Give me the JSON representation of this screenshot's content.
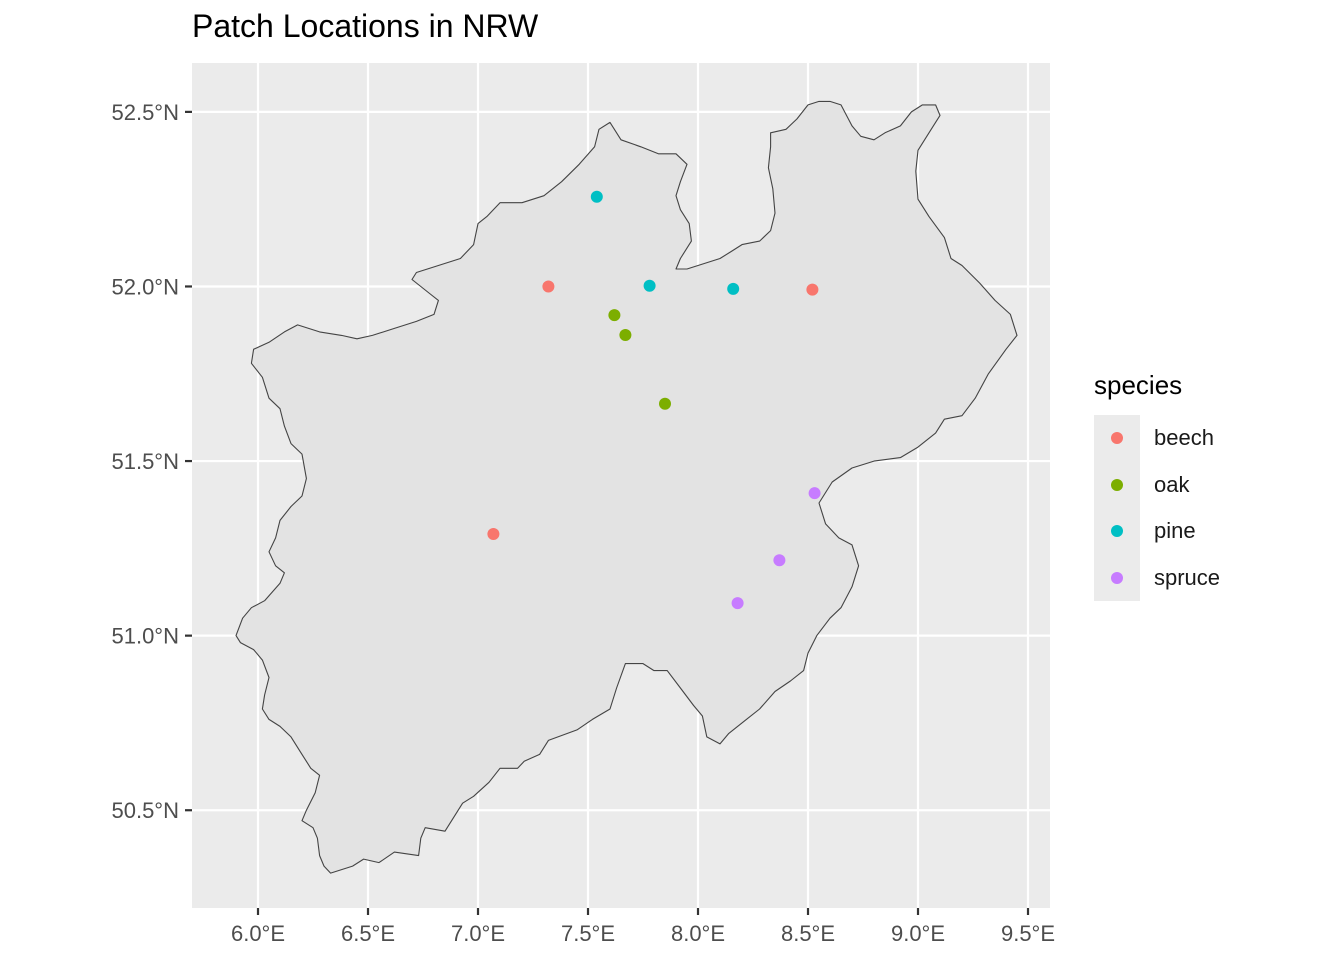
{
  "title": "Patch Locations in NRW",
  "legend": {
    "title": "species",
    "items": [
      {
        "label": "beech",
        "color": "#F8766D"
      },
      {
        "label": "oak",
        "color": "#7CAE00"
      },
      {
        "label": "pine",
        "color": "#00BFC4"
      },
      {
        "label": "spruce",
        "color": "#C77CFF"
      }
    ]
  },
  "map": {
    "region": "NRW",
    "panel_background": "#ebebeb",
    "region_fill": "#e3e3e3",
    "region_stroke": "#444444",
    "grid_color": "#ffffff",
    "lon_range": [
      5.7,
      9.6
    ],
    "lat_range": [
      50.22,
      52.64
    ]
  },
  "axes": {
    "x_ticks": [
      {
        "value": 6.0,
        "label": "6.0°E"
      },
      {
        "value": 6.5,
        "label": "6.5°E"
      },
      {
        "value": 7.0,
        "label": "7.0°E"
      },
      {
        "value": 7.5,
        "label": "7.5°E"
      },
      {
        "value": 8.0,
        "label": "8.0°E"
      },
      {
        "value": 8.5,
        "label": "8.5°E"
      },
      {
        "value": 9.0,
        "label": "9.0°E"
      },
      {
        "value": 9.5,
        "label": "9.5°E"
      }
    ],
    "y_ticks": [
      {
        "value": 50.5,
        "label": "50.5°N"
      },
      {
        "value": 51.0,
        "label": "51.0°N"
      },
      {
        "value": 51.5,
        "label": "51.5°N"
      },
      {
        "value": 52.0,
        "label": "52.0°N"
      },
      {
        "value": 52.5,
        "label": "52.5°N"
      }
    ]
  },
  "points": [
    {
      "lon": 7.54,
      "lat": 52.257,
      "species": "pine"
    },
    {
      "lon": 7.78,
      "lat": 52.002,
      "species": "pine"
    },
    {
      "lon": 8.16,
      "lat": 51.993,
      "species": "pine"
    },
    {
      "lon": 7.32,
      "lat": 52.0,
      "species": "beech"
    },
    {
      "lon": 8.52,
      "lat": 51.991,
      "species": "beech"
    },
    {
      "lon": 7.07,
      "lat": 51.291,
      "species": "beech"
    },
    {
      "lon": 7.62,
      "lat": 51.918,
      "species": "oak"
    },
    {
      "lon": 7.67,
      "lat": 51.861,
      "species": "oak"
    },
    {
      "lon": 7.85,
      "lat": 51.664,
      "species": "oak"
    },
    {
      "lon": 8.53,
      "lat": 51.408,
      "species": "spruce"
    },
    {
      "lon": 8.37,
      "lat": 51.216,
      "species": "spruce"
    },
    {
      "lon": 8.18,
      "lat": 51.093,
      "species": "spruce"
    }
  ],
  "boundary": [
    [
      6.33,
      50.32
    ],
    [
      6.43,
      50.34
    ],
    [
      6.48,
      50.36
    ],
    [
      6.55,
      50.35
    ],
    [
      6.62,
      50.38
    ],
    [
      6.73,
      50.37
    ],
    [
      6.74,
      50.42
    ],
    [
      6.76,
      50.45
    ],
    [
      6.85,
      50.44
    ],
    [
      6.88,
      50.47
    ],
    [
      6.93,
      50.52
    ],
    [
      6.98,
      50.54
    ],
    [
      7.05,
      50.58
    ],
    [
      7.1,
      50.62
    ],
    [
      7.18,
      50.62
    ],
    [
      7.21,
      50.64
    ],
    [
      7.28,
      50.66
    ],
    [
      7.32,
      50.7
    ],
    [
      7.45,
      50.73
    ],
    [
      7.52,
      50.76
    ],
    [
      7.6,
      50.79
    ],
    [
      7.63,
      50.85
    ],
    [
      7.67,
      50.92
    ],
    [
      7.75,
      50.92
    ],
    [
      7.8,
      50.9
    ],
    [
      7.86,
      50.9
    ],
    [
      7.92,
      50.85
    ],
    [
      7.98,
      50.8
    ],
    [
      8.02,
      50.77
    ],
    [
      8.04,
      50.71
    ],
    [
      8.1,
      50.69
    ],
    [
      8.14,
      50.72
    ],
    [
      8.18,
      50.74
    ],
    [
      8.22,
      50.76
    ],
    [
      8.28,
      50.79
    ],
    [
      8.35,
      50.84
    ],
    [
      8.42,
      50.87
    ],
    [
      8.48,
      50.9
    ],
    [
      8.5,
      50.95
    ],
    [
      8.54,
      51.0
    ],
    [
      8.6,
      51.05
    ],
    [
      8.65,
      51.08
    ],
    [
      8.7,
      51.14
    ],
    [
      8.73,
      51.2
    ],
    [
      8.7,
      51.26
    ],
    [
      8.64,
      51.28
    ],
    [
      8.58,
      51.32
    ],
    [
      8.55,
      51.38
    ],
    [
      8.61,
      51.44
    ],
    [
      8.7,
      51.48
    ],
    [
      8.8,
      51.5
    ],
    [
      8.92,
      51.51
    ],
    [
      9.0,
      51.54
    ],
    [
      9.08,
      51.58
    ],
    [
      9.12,
      51.62
    ],
    [
      9.2,
      51.63
    ],
    [
      9.26,
      51.68
    ],
    [
      9.32,
      51.75
    ],
    [
      9.4,
      51.82
    ],
    [
      9.45,
      51.86
    ],
    [
      9.42,
      51.92
    ],
    [
      9.35,
      51.96
    ],
    [
      9.28,
      52.01
    ],
    [
      9.2,
      52.06
    ],
    [
      9.15,
      52.08
    ],
    [
      9.12,
      52.14
    ],
    [
      9.05,
      52.2
    ],
    [
      9.0,
      52.25
    ],
    [
      8.99,
      52.33
    ],
    [
      9.0,
      52.39
    ],
    [
      9.05,
      52.44
    ],
    [
      9.1,
      52.49
    ],
    [
      9.08,
      52.52
    ],
    [
      9.02,
      52.52
    ],
    [
      8.97,
      52.5
    ],
    [
      8.92,
      52.46
    ],
    [
      8.85,
      52.44
    ],
    [
      8.8,
      52.42
    ],
    [
      8.74,
      52.43
    ],
    [
      8.7,
      52.46
    ],
    [
      8.65,
      52.52
    ],
    [
      8.6,
      52.53
    ],
    [
      8.55,
      52.53
    ],
    [
      8.5,
      52.52
    ],
    [
      8.45,
      52.48
    ],
    [
      8.4,
      52.45
    ],
    [
      8.33,
      52.44
    ],
    [
      8.33,
      52.4
    ],
    [
      8.32,
      52.34
    ],
    [
      8.34,
      52.28
    ],
    [
      8.35,
      52.21
    ],
    [
      8.33,
      52.16
    ],
    [
      8.28,
      52.13
    ],
    [
      8.2,
      52.12
    ],
    [
      8.15,
      52.1
    ],
    [
      8.1,
      52.08
    ],
    [
      8.05,
      52.07
    ],
    [
      8.0,
      52.06
    ],
    [
      7.95,
      52.05
    ],
    [
      7.9,
      52.05
    ],
    [
      7.92,
      52.08
    ],
    [
      7.97,
      52.13
    ],
    [
      7.96,
      52.18
    ],
    [
      7.92,
      52.22
    ],
    [
      7.9,
      52.26
    ],
    [
      7.92,
      52.3
    ],
    [
      7.95,
      52.35
    ],
    [
      7.9,
      52.38
    ],
    [
      7.82,
      52.38
    ],
    [
      7.74,
      52.4
    ],
    [
      7.65,
      52.42
    ],
    [
      7.6,
      52.47
    ],
    [
      7.55,
      52.45
    ],
    [
      7.53,
      52.4
    ],
    [
      7.46,
      52.35
    ],
    [
      7.38,
      52.3
    ],
    [
      7.3,
      52.26
    ],
    [
      7.2,
      52.24
    ],
    [
      7.1,
      52.24
    ],
    [
      7.04,
      52.2
    ],
    [
      7.0,
      52.18
    ],
    [
      6.98,
      52.12
    ],
    [
      6.92,
      52.08
    ],
    [
      6.82,
      52.06
    ],
    [
      6.72,
      52.04
    ],
    [
      6.7,
      52.02
    ],
    [
      6.74,
      52.0
    ],
    [
      6.78,
      51.98
    ],
    [
      6.82,
      51.96
    ],
    [
      6.8,
      51.92
    ],
    [
      6.72,
      51.9
    ],
    [
      6.62,
      51.88
    ],
    [
      6.52,
      51.86
    ],
    [
      6.45,
      51.85
    ],
    [
      6.38,
      51.86
    ],
    [
      6.28,
      51.87
    ],
    [
      6.18,
      51.89
    ],
    [
      6.12,
      51.87
    ],
    [
      6.05,
      51.84
    ],
    [
      5.98,
      51.82
    ],
    [
      5.97,
      51.78
    ],
    [
      6.02,
      51.74
    ],
    [
      6.05,
      51.68
    ],
    [
      6.1,
      51.65
    ],
    [
      6.12,
      51.6
    ],
    [
      6.15,
      51.55
    ],
    [
      6.2,
      51.52
    ],
    [
      6.22,
      51.45
    ],
    [
      6.2,
      51.4
    ],
    [
      6.15,
      51.37
    ],
    [
      6.1,
      51.33
    ],
    [
      6.08,
      51.28
    ],
    [
      6.05,
      51.24
    ],
    [
      6.08,
      51.2
    ],
    [
      6.12,
      51.18
    ],
    [
      6.1,
      51.15
    ],
    [
      6.03,
      51.1
    ],
    [
      5.97,
      51.08
    ],
    [
      5.93,
      51.05
    ],
    [
      5.9,
      51.0
    ],
    [
      5.92,
      50.98
    ],
    [
      5.98,
      50.96
    ],
    [
      6.02,
      50.93
    ],
    [
      6.05,
      50.88
    ],
    [
      6.03,
      50.83
    ],
    [
      6.02,
      50.79
    ],
    [
      6.05,
      50.76
    ],
    [
      6.1,
      50.74
    ],
    [
      6.15,
      50.71
    ],
    [
      6.2,
      50.66
    ],
    [
      6.24,
      50.62
    ],
    [
      6.28,
      50.6
    ],
    [
      6.26,
      50.55
    ],
    [
      6.22,
      50.5
    ],
    [
      6.2,
      50.47
    ],
    [
      6.25,
      50.45
    ],
    [
      6.27,
      50.42
    ],
    [
      6.28,
      50.37
    ],
    [
      6.3,
      50.34
    ]
  ]
}
